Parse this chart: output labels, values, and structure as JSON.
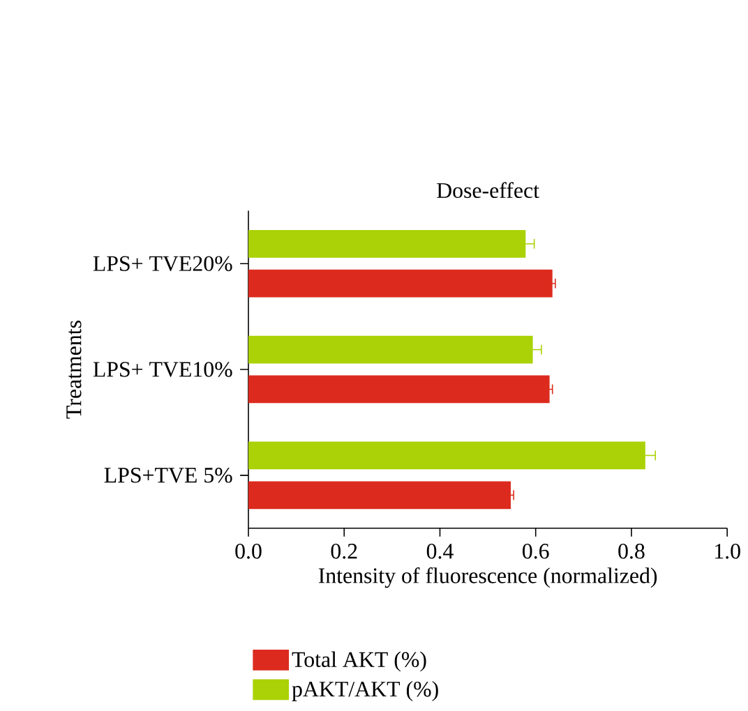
{
  "chart_data": {
    "type": "bar",
    "orientation": "horizontal",
    "title": "Dose-effect",
    "xlabel": "Intensity of fluorescence (normalized)",
    "ylabel": "Treatments",
    "categories": [
      "LPS+ TVE20%",
      "LPS+ TVE10%",
      "LPS+TVE 5%"
    ],
    "series": [
      {
        "name": "Total AKT (%)",
        "color": "#dc2b1e",
        "values": [
          0.635,
          0.629,
          0.548
        ],
        "errors": [
          0.006,
          0.006,
          0.006
        ]
      },
      {
        "name": "pAKT/AKT (%)",
        "color": "#aad206",
        "values": [
          0.579,
          0.594,
          0.829
        ],
        "errors": [
          0.018,
          0.018,
          0.021
        ]
      }
    ],
    "xlim": [
      0,
      1.0
    ],
    "xticks": [
      {
        "value": 0,
        "label": "0.0"
      },
      {
        "value": 0.2,
        "label": "0.2"
      },
      {
        "value": 0.4,
        "label": "0.4"
      },
      {
        "value": 0.6,
        "label": "0.6"
      },
      {
        "value": 0.8,
        "label": "0.8"
      },
      {
        "value": 1.0,
        "label": "1.0"
      }
    ],
    "grid": false,
    "legend": "bottom"
  }
}
